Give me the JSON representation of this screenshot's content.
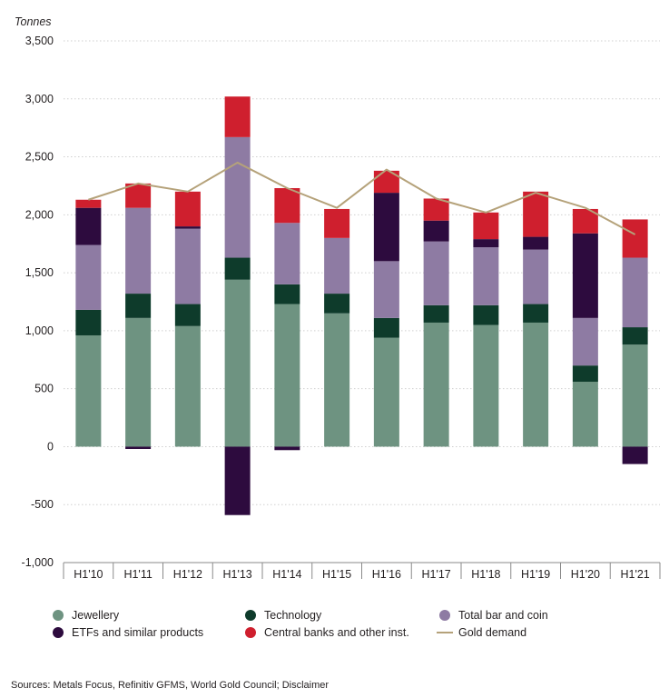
{
  "chart_data": {
    "type": "bar",
    "stacked": true,
    "ylabel": "Tonnes",
    "ylim": [
      -1000,
      3500
    ],
    "yticks": [
      -1000,
      -500,
      0,
      500,
      1000,
      1500,
      2000,
      2500,
      3000,
      3500
    ],
    "ytick_labels": [
      "-1,000",
      "-500",
      "0",
      "500",
      "1,000",
      "1,500",
      "2,000",
      "2,500",
      "3,000",
      "3,500"
    ],
    "categories": [
      "H1'10",
      "H1'11",
      "H1'12",
      "H1'13",
      "H1'14",
      "H1'15",
      "H1'16",
      "H1'17",
      "H1'18",
      "H1'19",
      "H1'20",
      "H1'21"
    ],
    "grid": "horizontal dotted",
    "legend_position": "bottom",
    "series": [
      {
        "name": "Jewellery",
        "kind": "bar",
        "color": "#6e9381",
        "values": [
          960,
          1110,
          1040,
          1440,
          1230,
          1150,
          940,
          1070,
          1050,
          1070,
          560,
          880
        ]
      },
      {
        "name": "Technology",
        "kind": "bar",
        "color": "#0e3b2b",
        "values": [
          220,
          210,
          190,
          190,
          170,
          170,
          170,
          150,
          170,
          160,
          140,
          150
        ]
      },
      {
        "name": "Total bar and coin",
        "kind": "bar",
        "color": "#8e7ba3",
        "values": [
          560,
          740,
          650,
          1040,
          530,
          480,
          490,
          550,
          500,
          470,
          410,
          600
        ]
      },
      {
        "name": "ETFs and similar products",
        "kind": "bar",
        "color": "#2d0b3e",
        "values": [
          320,
          -20,
          20,
          -590,
          -30,
          0,
          590,
          180,
          70,
          110,
          730,
          -150
        ]
      },
      {
        "name": "Central banks and other inst.",
        "kind": "bar",
        "color": "#cf1f2e",
        "values": [
          70,
          210,
          300,
          350,
          300,
          250,
          190,
          190,
          230,
          390,
          210,
          330
        ]
      },
      {
        "name": "Gold demand",
        "kind": "line",
        "color": "#b5a27a",
        "values": [
          2130,
          2270,
          2200,
          2450,
          2230,
          2060,
          2390,
          2140,
          2020,
          2190,
          2060,
          1830
        ]
      }
    ]
  },
  "legend": [
    {
      "name": "Jewellery",
      "shape": "dot",
      "color": "#6e9381"
    },
    {
      "name": "Technology",
      "shape": "dot",
      "color": "#0e3b2b"
    },
    {
      "name": "Total bar and coin",
      "shape": "dot",
      "color": "#8e7ba3"
    },
    {
      "name": "ETFs and similar products",
      "shape": "dot",
      "color": "#2d0b3e"
    },
    {
      "name": "Central banks and other inst.",
      "shape": "dot",
      "color": "#cf1f2e"
    },
    {
      "name": "Gold demand",
      "shape": "line",
      "color": "#b5a27a"
    }
  ],
  "source": "Sources: Metals Focus, Refinitiv GFMS, World Gold Council; Disclaimer"
}
